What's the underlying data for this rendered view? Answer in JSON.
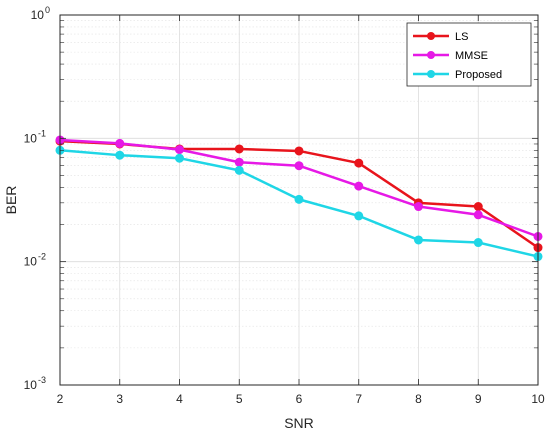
{
  "chart_data": {
    "type": "line",
    "title": "",
    "xlabel": "SNR",
    "ylabel": "BER",
    "x": [
      2,
      3,
      4,
      5,
      6,
      7,
      8,
      9,
      10
    ],
    "xlim": [
      2,
      10
    ],
    "ylim": [
      0.001,
      1
    ],
    "yscale": "log",
    "x_ticks": [
      "2",
      "3",
      "4",
      "5",
      "6",
      "7",
      "8",
      "9",
      "10"
    ],
    "y_ticks": [
      {
        "base": "10",
        "exp": "0"
      },
      {
        "base": "10",
        "exp": "-1"
      },
      {
        "base": "10",
        "exp": "-2"
      },
      {
        "base": "10",
        "exp": "-3"
      }
    ],
    "grid": true,
    "legend_position": "top-right",
    "series": [
      {
        "name": "LS",
        "color": "#e8141c",
        "values": [
          0.095,
          0.09,
          0.082,
          0.082,
          0.079,
          0.063,
          0.03,
          0.028,
          0.013
        ]
      },
      {
        "name": "MMSE",
        "color": "#e619e6",
        "values": [
          0.097,
          0.091,
          0.081,
          0.064,
          0.06,
          0.041,
          0.028,
          0.024,
          0.016
        ]
      },
      {
        "name": "Proposed",
        "color": "#1fd6e6",
        "values": [
          0.08,
          0.073,
          0.069,
          0.055,
          0.032,
          0.0235,
          0.015,
          0.0143,
          0.011
        ]
      }
    ]
  }
}
